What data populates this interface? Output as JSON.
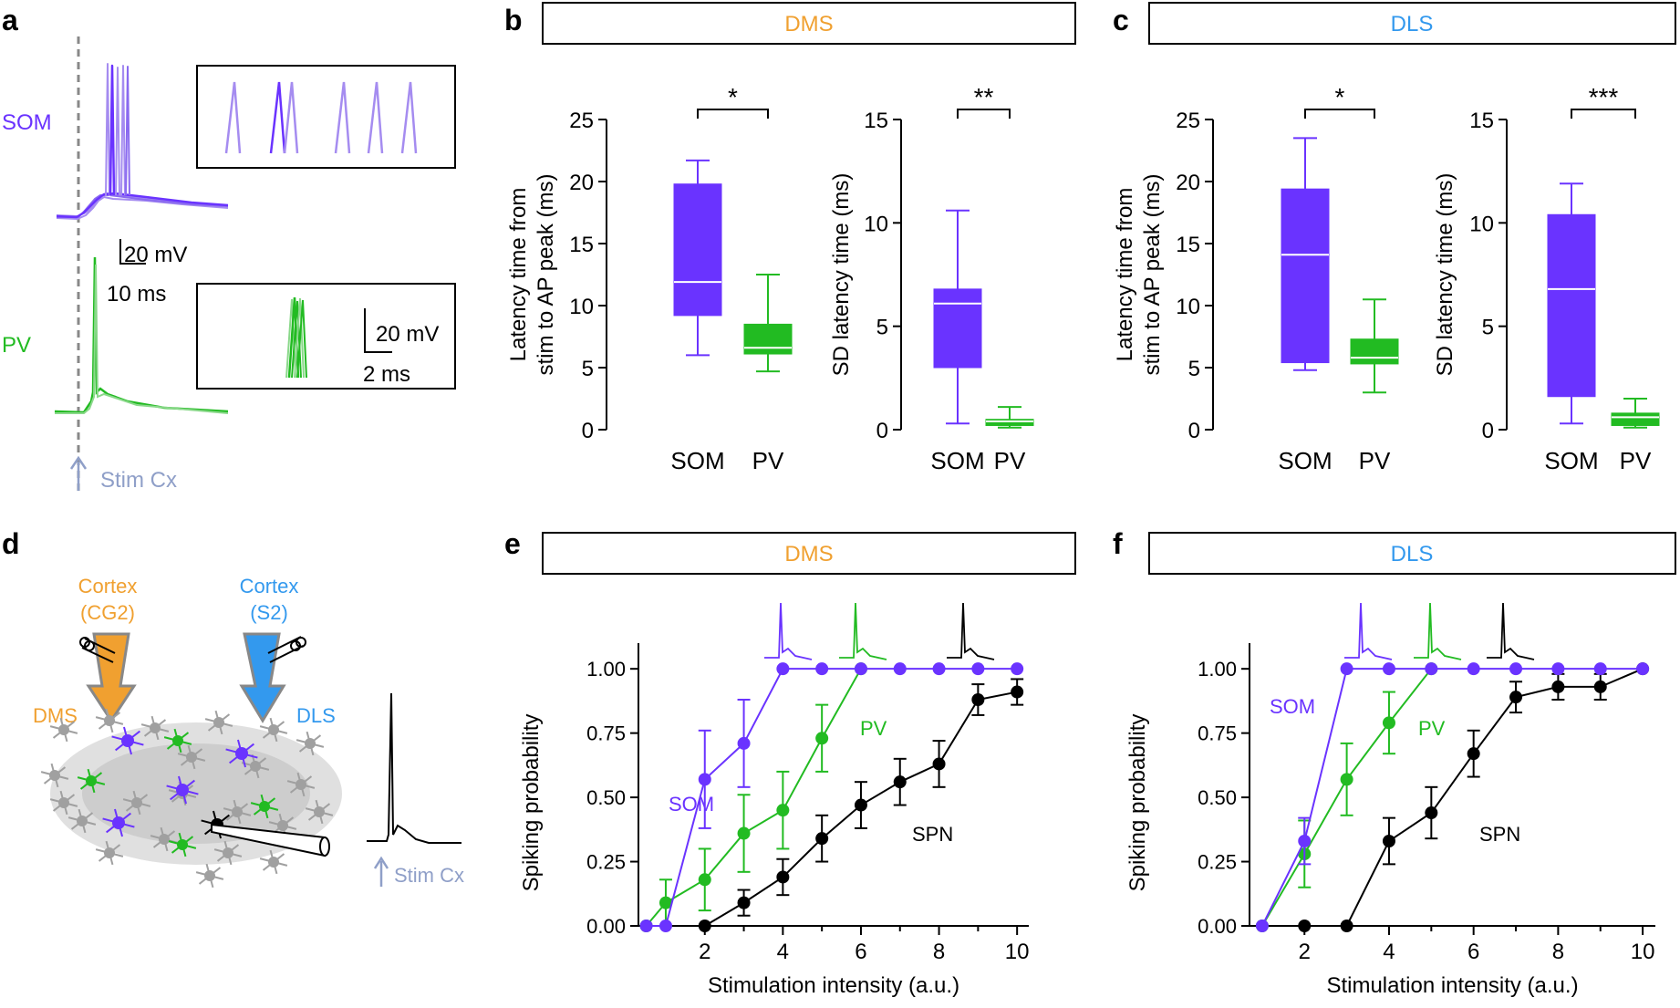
{
  "colors": {
    "som": "#6a33ff",
    "som_light": "#a58cf0",
    "pv": "#22bb22",
    "pv_light": "#8ad88a",
    "spn": "#000000",
    "dms": "#f0a030",
    "dls": "#3399ee",
    "stim": "#8f9fc8",
    "dash": "#888888"
  },
  "panels": {
    "a": {
      "letter": "a",
      "som_label": "SOM",
      "pv_label": "PV",
      "scale1_v": "20 mV",
      "scale1_t": "10 ms",
      "scale2_v": "20 mV",
      "scale2_t": "2 ms",
      "stim_label": "Stim Cx"
    },
    "b": {
      "letter": "b",
      "region": "DMS"
    },
    "c": {
      "letter": "c",
      "region": "DLS"
    },
    "d": {
      "letter": "d",
      "cortex_left": "Cortex",
      "cortex_left_sub": "(CG2)",
      "cortex_right": "Cortex",
      "cortex_right_sub": "(S2)",
      "dms": "DMS",
      "dls": "DLS",
      "stim_label": "Stim Cx"
    },
    "e": {
      "letter": "e",
      "region": "DMS"
    },
    "f": {
      "letter": "f",
      "region": "DLS"
    }
  },
  "chart_data": [
    {
      "id": "b1",
      "type": "box",
      "ylabel": "Latency time from\nstim to AP peak (ms)",
      "ylim": [
        0,
        25
      ],
      "yticks": [
        "0",
        "5",
        "10",
        "15",
        "20",
        "25"
      ],
      "categories": [
        "SOM",
        "PV"
      ],
      "boxes": [
        {
          "name": "SOM",
          "min": 6,
          "q1": 9.2,
          "median": 11.9,
          "q3": 19.8,
          "max": 21.7
        },
        {
          "name": "PV",
          "min": 4.7,
          "q1": 6.1,
          "median": 6.6,
          "q3": 8.5,
          "max": 12.5
        }
      ],
      "significance": "*"
    },
    {
      "id": "b2",
      "type": "box",
      "ylabel": "SD latency time (ms)",
      "ylim": [
        0,
        15
      ],
      "yticks": [
        "0",
        "5",
        "10",
        "15"
      ],
      "categories": [
        "SOM",
        "PV"
      ],
      "boxes": [
        {
          "name": "SOM",
          "min": 0.3,
          "q1": 3.0,
          "median": 6.1,
          "q3": 6.8,
          "max": 10.6
        },
        {
          "name": "PV",
          "min": 0.1,
          "q1": 0.2,
          "median": 0.4,
          "q3": 0.5,
          "max": 1.1
        }
      ],
      "significance": "**"
    },
    {
      "id": "c1",
      "type": "box",
      "ylabel": "Latency time from\nstim to AP peak (ms)",
      "ylim": [
        0,
        25
      ],
      "yticks": [
        "0",
        "5",
        "10",
        "15",
        "20",
        "25"
      ],
      "categories": [
        "SOM",
        "PV"
      ],
      "boxes": [
        {
          "name": "SOM",
          "min": 4.8,
          "q1": 5.4,
          "median": 14.1,
          "q3": 19.4,
          "max": 23.5
        },
        {
          "name": "PV",
          "min": 3.0,
          "q1": 5.3,
          "median": 5.8,
          "q3": 7.3,
          "max": 10.5
        }
      ],
      "significance": "*"
    },
    {
      "id": "c2",
      "type": "box",
      "ylabel": "SD latency time (ms)",
      "ylim": [
        0,
        15
      ],
      "yticks": [
        "0",
        "5",
        "10",
        "15"
      ],
      "categories": [
        "SOM",
        "PV"
      ],
      "boxes": [
        {
          "name": "SOM",
          "min": 0.3,
          "q1": 1.6,
          "median": 6.8,
          "q3": 10.4,
          "max": 11.9
        },
        {
          "name": "PV",
          "min": 0.1,
          "q1": 0.2,
          "median": 0.6,
          "q3": 0.8,
          "max": 1.5
        }
      ],
      "significance": "***"
    },
    {
      "id": "e",
      "type": "line",
      "xlabel": "Stimulation intensity (a.u.)",
      "ylabel": "Spiking probability",
      "xlim": [
        0.3,
        10.3
      ],
      "ylim": [
        0,
        1.1
      ],
      "xticks": [
        "2",
        "4",
        "6",
        "8",
        "10"
      ],
      "yticks": [
        "0.00",
        "0.25",
        "0.50",
        "0.75",
        "1.00"
      ],
      "series": [
        {
          "name": "SOM",
          "x": [
            0.5,
            1,
            2,
            3,
            4,
            5,
            6,
            7,
            8,
            9,
            10
          ],
          "y": [
            0,
            0,
            0.57,
            0.71,
            1,
            1,
            1,
            1,
            1,
            1,
            1
          ],
          "err": [
            0,
            0,
            0.19,
            0.17,
            0,
            0,
            0,
            0,
            0,
            0,
            0
          ]
        },
        {
          "name": "PV",
          "x": [
            0.5,
            1,
            2,
            3,
            4,
            5,
            6
          ],
          "y": [
            0,
            0.09,
            0.18,
            0.36,
            0.45,
            0.73,
            1
          ],
          "err": [
            0,
            0.09,
            0.12,
            0.15,
            0.15,
            0.13,
            0
          ]
        },
        {
          "name": "SPN",
          "x": [
            2,
            3,
            4,
            5,
            6,
            7,
            8,
            9,
            10
          ],
          "y": [
            0,
            0.09,
            0.19,
            0.34,
            0.47,
            0.56,
            0.63,
            0.88,
            0.91
          ],
          "err": [
            0,
            0.05,
            0.07,
            0.09,
            0.09,
            0.09,
            0.09,
            0.06,
            0.05
          ]
        }
      ]
    },
    {
      "id": "f",
      "type": "line",
      "xlabel": "Stimulation intensity (a.u.)",
      "ylabel": "Spiking probability",
      "xlim": [
        0.7,
        10.3
      ],
      "ylim": [
        0,
        1.1
      ],
      "xticks": [
        "2",
        "4",
        "6",
        "8",
        "10"
      ],
      "yticks": [
        "0.00",
        "0.25",
        "0.50",
        "0.75",
        "1.00"
      ],
      "series": [
        {
          "name": "SOM",
          "x": [
            1,
            2,
            3,
            4,
            5,
            6,
            7,
            8,
            9,
            10
          ],
          "y": [
            0,
            0.33,
            1,
            1,
            1,
            1,
            1,
            1,
            1,
            1
          ],
          "err": [
            0,
            0.09,
            0,
            0,
            0,
            0,
            0,
            0,
            0,
            0
          ]
        },
        {
          "name": "PV",
          "x": [
            1,
            2,
            3,
            4,
            5
          ],
          "y": [
            0,
            0.28,
            0.57,
            0.79,
            1
          ],
          "err": [
            0,
            0.13,
            0.14,
            0.12,
            0
          ]
        },
        {
          "name": "SPN",
          "x": [
            2,
            3,
            4,
            5,
            6,
            7,
            8,
            9,
            10
          ],
          "y": [
            0,
            0,
            0.33,
            0.44,
            0.67,
            0.89,
            0.93,
            0.93,
            1
          ],
          "err": [
            0,
            0,
            0.09,
            0.1,
            0.09,
            0.06,
            0.05,
            0.05,
            0
          ]
        }
      ]
    }
  ]
}
